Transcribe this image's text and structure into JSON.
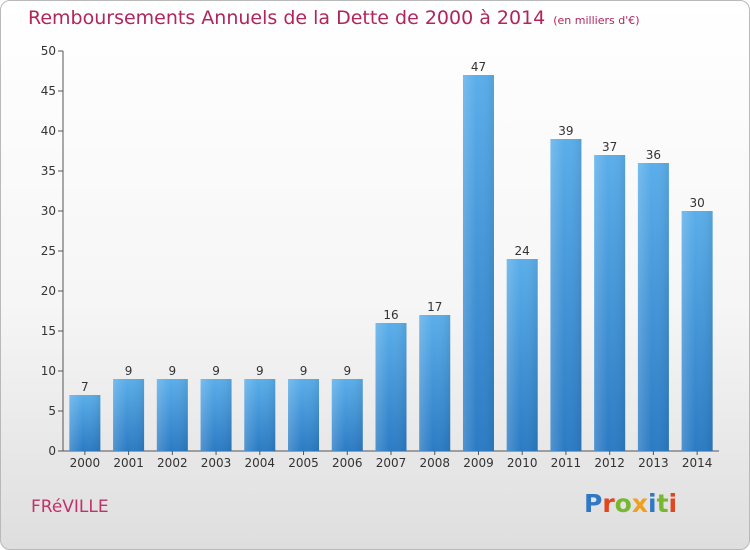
{
  "chart_data": {
    "type": "bar",
    "title": "Remboursements Annuels de la Dette de 2000 à 2014",
    "subtitle": "(en milliers d'€)",
    "categories": [
      "2000",
      "2001",
      "2002",
      "2003",
      "2004",
      "2005",
      "2006",
      "2007",
      "2008",
      "2009",
      "2010",
      "2011",
      "2012",
      "2013",
      "2014"
    ],
    "values": [
      7,
      9,
      9,
      9,
      9,
      9,
      9,
      16,
      17,
      47,
      24,
      39,
      37,
      36,
      30
    ],
    "data_labels": [
      "7",
      "9",
      "9",
      "9",
      "9",
      "9",
      "9",
      "16",
      "17",
      "47",
      "24",
      "39",
      "37",
      "36",
      "30"
    ],
    "ylim": [
      0,
      50
    ],
    "yticks": [
      0,
      5,
      10,
      15,
      20,
      25,
      30,
      35,
      40,
      45,
      50
    ],
    "grid": false,
    "legend": "none",
    "bar_color": "#4a9fe0"
  },
  "footer": {
    "town": "FRéVILLE",
    "brand": "Proxiti"
  },
  "colors": {
    "title": "#b0265b",
    "brand_letters": [
      "#2e78c6",
      "#e2451f",
      "#78b830",
      "#f0a020",
      "#2e78c6",
      "#78b830",
      "#e2451f"
    ]
  }
}
